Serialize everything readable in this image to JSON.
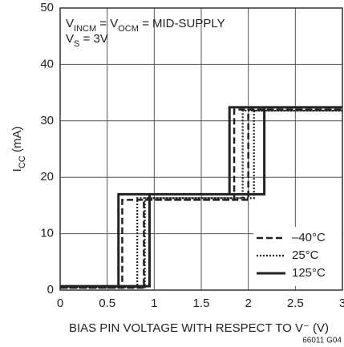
{
  "chart_data": {
    "type": "line",
    "annotations": [
      [
        {
          "t": "V"
        },
        {
          "t": "INCM",
          "sub": true
        },
        {
          "t": " = V"
        },
        {
          "t": "OCM",
          "sub": true
        },
        {
          "t": " = MID-SUPPLY"
        }
      ],
      [
        {
          "t": "V"
        },
        {
          "t": "S",
          "sub": true
        },
        {
          "t": " = 3V"
        }
      ]
    ],
    "y_label": [
      {
        "t": "I"
      },
      {
        "t": "CC",
        "sub": true
      },
      {
        "t": " (mA)"
      }
    ],
    "x_label": "BIAS PIN VOLTAGE WITH RESPECT TO V⁻ (V)",
    "footnote": "66011 G04",
    "xlim": [
      0,
      3
    ],
    "xticks": [
      0,
      0.5,
      1,
      1.5,
      2,
      2.5,
      3
    ],
    "ylim": [
      0,
      50
    ],
    "yticks": [
      0,
      10,
      20,
      30,
      40,
      50
    ],
    "grid": true,
    "legend": "lower right",
    "series": [
      {
        "name": "–40°C",
        "color": "#222222",
        "dash": "dashed",
        "x": [
          0,
          0.89,
          0.89,
          2.0,
          2.0,
          3,
          1.85,
          1.85,
          0.66,
          0.66,
          0
        ],
        "values": [
          0.4,
          0.4,
          16,
          16,
          32,
          32,
          32,
          16,
          16,
          0.4,
          0.4
        ]
      },
      {
        "name": "25°C",
        "color": "#222222",
        "dash": "dotted",
        "x": [
          0,
          0.9,
          0.9,
          2.06,
          2.06,
          3,
          1.94,
          1.94,
          0.82,
          0.82,
          0
        ],
        "values": [
          0.5,
          0.5,
          16.3,
          16.3,
          31.8,
          31.8,
          31.8,
          16.3,
          16.3,
          0.5,
          0.5
        ]
      },
      {
        "name": "125°C",
        "color": "#222222",
        "dash": "solid",
        "x": [
          0,
          0.95,
          0.95,
          2.17,
          2.17,
          3,
          1.8,
          1.8,
          0.62,
          0.62,
          0
        ],
        "values": [
          0.7,
          0.7,
          17,
          17,
          32.4,
          32.4,
          32.4,
          17,
          17,
          0.7,
          0.7
        ]
      }
    ]
  }
}
